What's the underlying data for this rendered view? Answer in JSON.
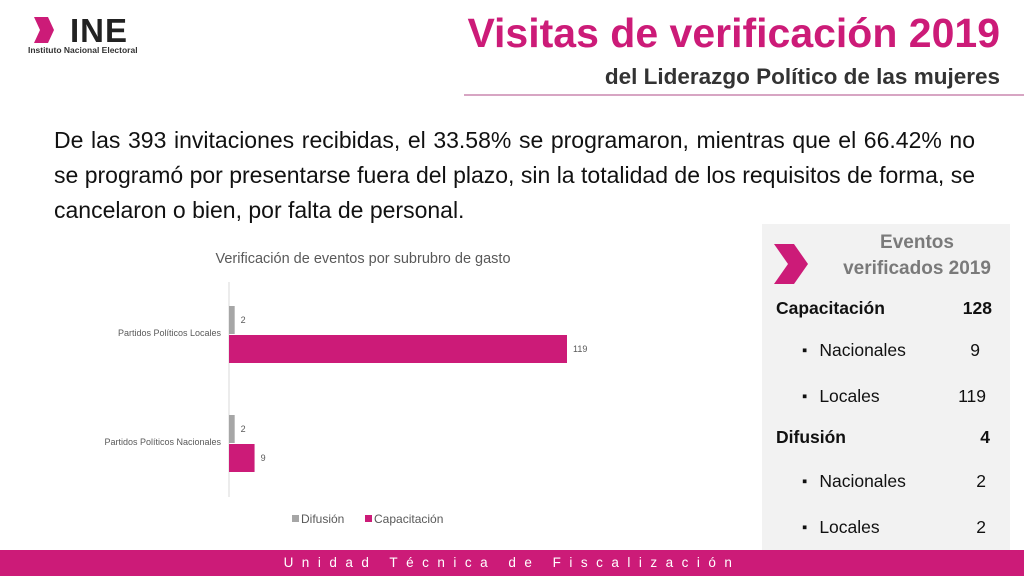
{
  "header": {
    "logo_text": "INE",
    "logo_subtitle": "Instituto Nacional Electoral",
    "title": "Visitas de verificación 2019",
    "subtitle": "del Liderazgo Político de las mujeres"
  },
  "intro": "De las 393 invitaciones recibidas, el 33.58% se programaron, mientras que el 66.42% no se programó por presentarse fuera del plazo, sin la totalidad de los requisitos de forma, se cancelaron o bien, por falta de personal.",
  "chart_data": {
    "type": "bar",
    "orientation": "horizontal",
    "title": "Verificación de eventos por subrubro de gasto",
    "categories": [
      "Partidos Políticos Locales",
      "Partidos Políticos Nacionales"
    ],
    "series": [
      {
        "name": "Difusión",
        "values": [
          2,
          2
        ],
        "color": "#a6a6a6"
      },
      {
        "name": "Capacitación",
        "values": [
          119,
          9
        ],
        "color": "#cc1b78"
      }
    ],
    "xlim": [
      0,
      130
    ],
    "grid": false,
    "legend": "bottom"
  },
  "panel": {
    "title_line1": "Eventos",
    "title_line2": "verificados 2019",
    "rows": [
      {
        "label": "Capacitación",
        "value": "128",
        "type": "head"
      },
      {
        "label": "Nacionales",
        "value": "9",
        "type": "sub"
      },
      {
        "label": "Locales",
        "value": "119",
        "type": "sub"
      },
      {
        "label": "Difusión",
        "value": "4",
        "type": "head"
      },
      {
        "label": "Nacionales",
        "value": "2",
        "type": "sub"
      },
      {
        "label": "Locales",
        "value": "2",
        "type": "sub"
      }
    ]
  },
  "footer": "Unidad Técnica de Fiscalización",
  "colors": {
    "accent": "#cc1b78",
    "gray": "#a6a6a6"
  }
}
